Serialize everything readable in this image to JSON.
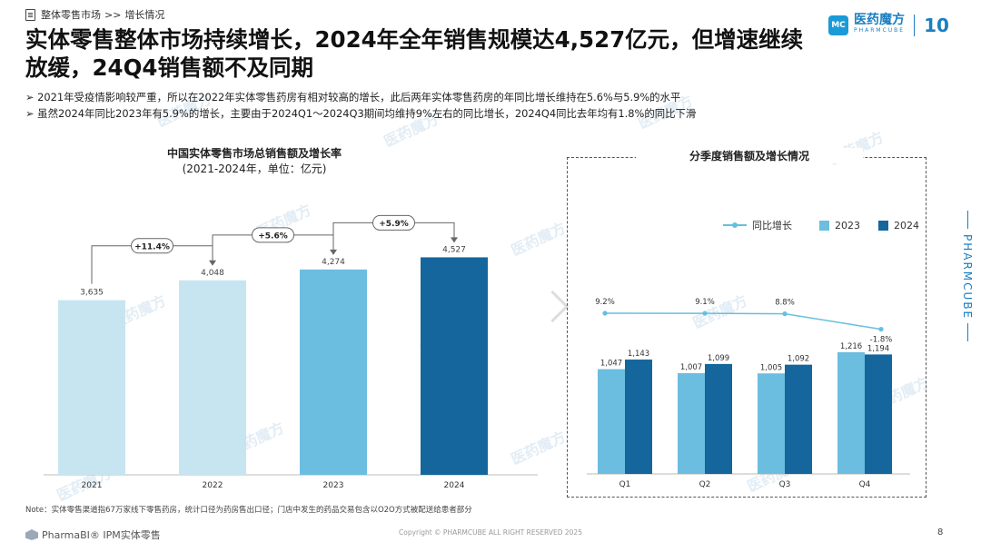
{
  "breadcrumb": {
    "section": "整体零售市场",
    "sep": ">>",
    "page": "增长情况"
  },
  "title": "实体零售整体市场持续增长，2024年全年销售规模达4,527亿元，但增速继续放缓，24Q4销售额不及同期",
  "logo": {
    "cn": "医药魔方",
    "en": "PHARMCUBE",
    "anniv": "10"
  },
  "bullets": [
    "2021年受疫情影响较严重，所以在2022年实体零售药房有相对较高的增长，此后两年实体零售药房的年同比增长维持在5.6%与5.9%的水平",
    "虽然2024年同比2023年有5.9%的增长，主要由于2024Q1～2024Q3期间均维持9%左右的同比增长，2024Q4同比去年均有1.8%的同比下滑"
  ],
  "side_label": "PHARMCUBE",
  "watermark_text": "医药魔方",
  "note": "Note：实体零售渠道指67万家线下零售药房，统计口径为药房售出口径；门店中发生的药品交易包含以O2O方式被配送给患者部分",
  "footer": {
    "brand": "PharmaBI® IPM实体零售"
  },
  "copyright": "Copyright © PHARMCUBE ALL RIGHT RESERVED 2025",
  "page_number": "8",
  "colors": {
    "light": "#c7e5f1",
    "mid": "#6bbedf",
    "dark": "#14669c",
    "line": "#66bfe0"
  },
  "chart_data": [
    {
      "type": "bar",
      "title": "中国实体零售市场总销售额及增长率",
      "subtitle": "(2021-2024年，单位：亿元)",
      "categories": [
        "2021",
        "2022",
        "2023",
        "2024"
      ],
      "values": [
        3635,
        4048,
        4274,
        4527
      ],
      "value_labels": [
        "3,635",
        "4,048",
        "4,274",
        "4,527"
      ],
      "growth_labels": [
        "+11.4%",
        "+5.6%",
        "+5.9%"
      ],
      "ylim": [
        0,
        5000
      ]
    },
    {
      "type": "bar",
      "title": "分季度销售额及增长情况",
      "categories": [
        "Q1",
        "Q2",
        "Q3",
        "Q4"
      ],
      "series": [
        {
          "name": "2023",
          "values": [
            1047,
            1007,
            1005,
            1216
          ],
          "labels": [
            "1,047",
            "1,007",
            "1,005",
            "1,216"
          ]
        },
        {
          "name": "2024",
          "values": [
            1143,
            1099,
            1092,
            1194
          ],
          "labels": [
            "1,143",
            "1,099",
            "1,092",
            "1,194"
          ]
        }
      ],
      "line": {
        "name": "同比增长",
        "values": [
          9.2,
          9.1,
          8.8,
          -1.8
        ],
        "labels": [
          "9.2%",
          "9.1%",
          "8.8%",
          "-1.8%"
        ]
      },
      "ylim": [
        0,
        2600
      ]
    }
  ]
}
